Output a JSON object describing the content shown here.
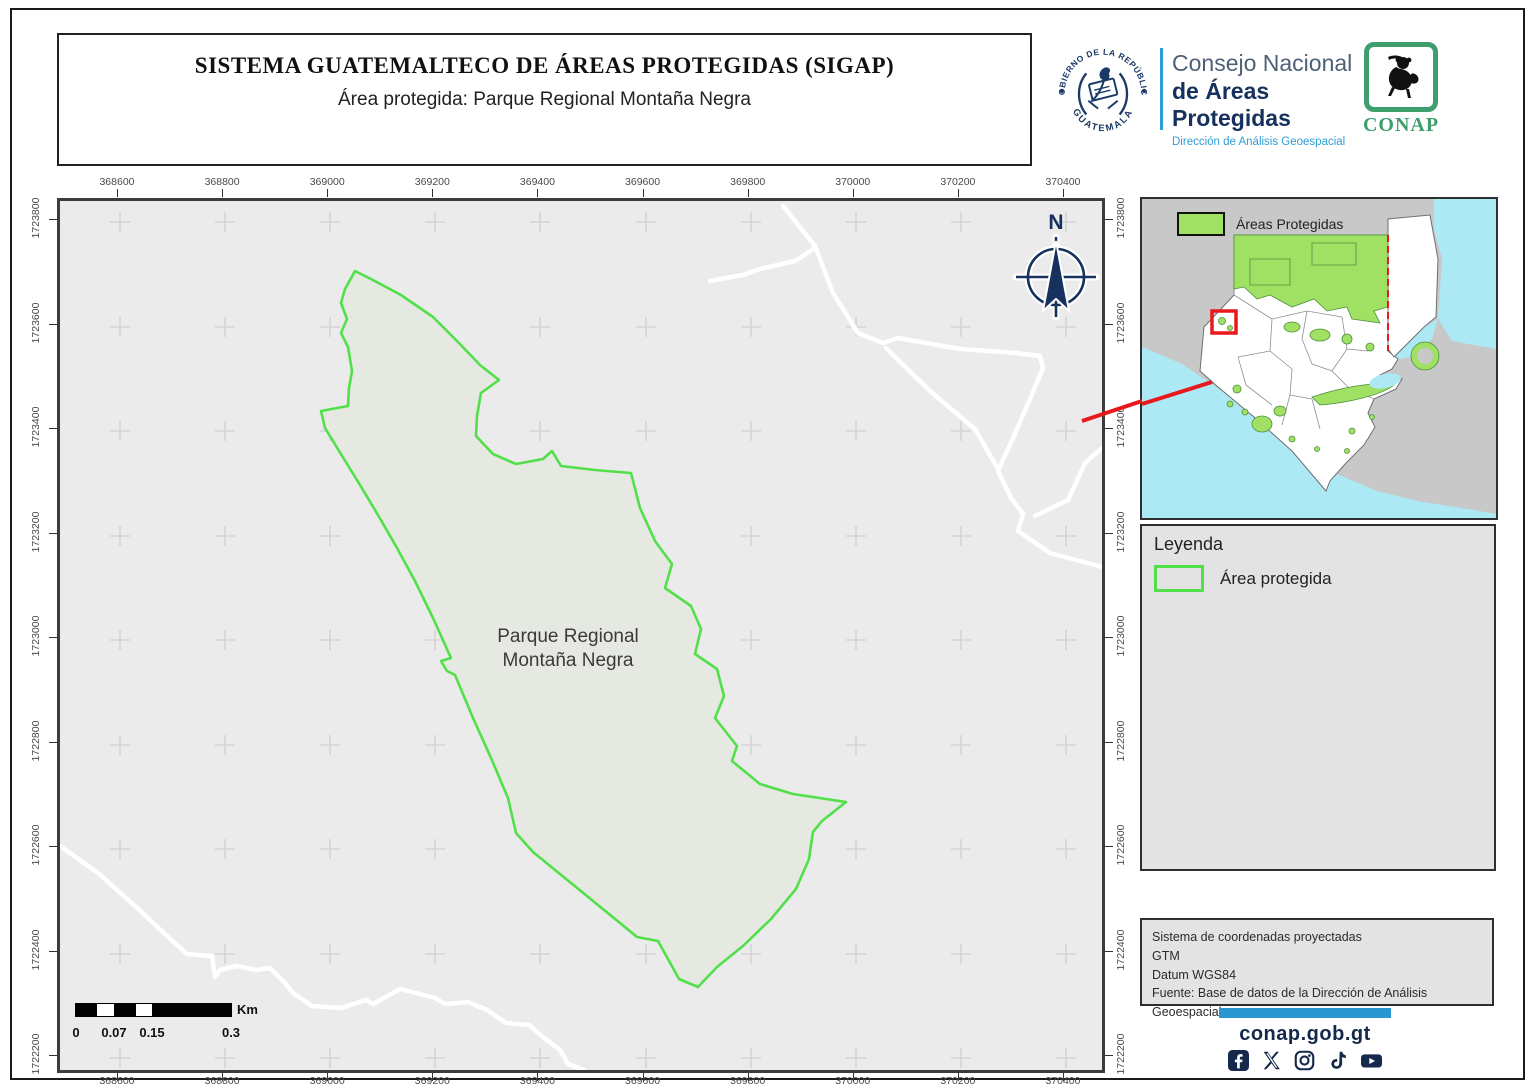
{
  "header": {
    "title": "SISTEMA GUATEMALTECO DE ÁREAS PROTEGIDAS  (SIGAP)",
    "subtitle": "Área protegida: Parque Regional Montaña Negra"
  },
  "branding": {
    "seal_arc_top": "GOBIERNO DE LA REPÚBLICA",
    "seal_arc_bottom": "GUATEMALA",
    "council_line1": "Consejo Nacional",
    "council_line2": "de Áreas Protegidas",
    "council_line3": "Dirección de Análisis Geoespacial",
    "conap_label": "CONAP"
  },
  "map": {
    "x_ticks": [
      "368600",
      "368800",
      "369000",
      "369200",
      "369400",
      "369600",
      "369800",
      "370000",
      "370200",
      "370400"
    ],
    "y_ticks": [
      "1723800",
      "1723600",
      "1723400",
      "1723200",
      "1723000",
      "1722800",
      "1722600",
      "1722400",
      "1722200"
    ],
    "area_label": [
      "Parque Regional",
      "Montaña Negra"
    ],
    "north_label": "N",
    "scalebar": {
      "tick_labels": [
        "0",
        "0.07",
        "0.15",
        "0.3"
      ],
      "unit": "Km"
    }
  },
  "inset": {
    "legend_label": "Áreas Protegidas"
  },
  "legend": {
    "title": "Leyenda",
    "items": [
      {
        "label": "Área protegida",
        "swatch_color": "#52e04a"
      }
    ]
  },
  "projection_info": {
    "lines": [
      "Sistema de coordenadas proyectadas",
      "GTM",
      "Datum WGS84",
      "Fuente: Base de datos de la Dirección de Análisis Geoespacial"
    ]
  },
  "footer": {
    "website": "conap.gob.gt",
    "social_icons": [
      "facebook",
      "x-twitter",
      "instagram",
      "tiktok",
      "youtube"
    ]
  },
  "colors": {
    "protected_area_outline": "#52e04a",
    "protected_area_fill": "#e5e9e1",
    "map_background": "#ebebeb",
    "water": "#ade9f4",
    "protected_green": "#a0e063",
    "accent_red": "#e8191c",
    "brand_navy": "#16315e",
    "brand_blue": "#2e9fd4",
    "footer_bar_blue": "#2a96d2"
  }
}
